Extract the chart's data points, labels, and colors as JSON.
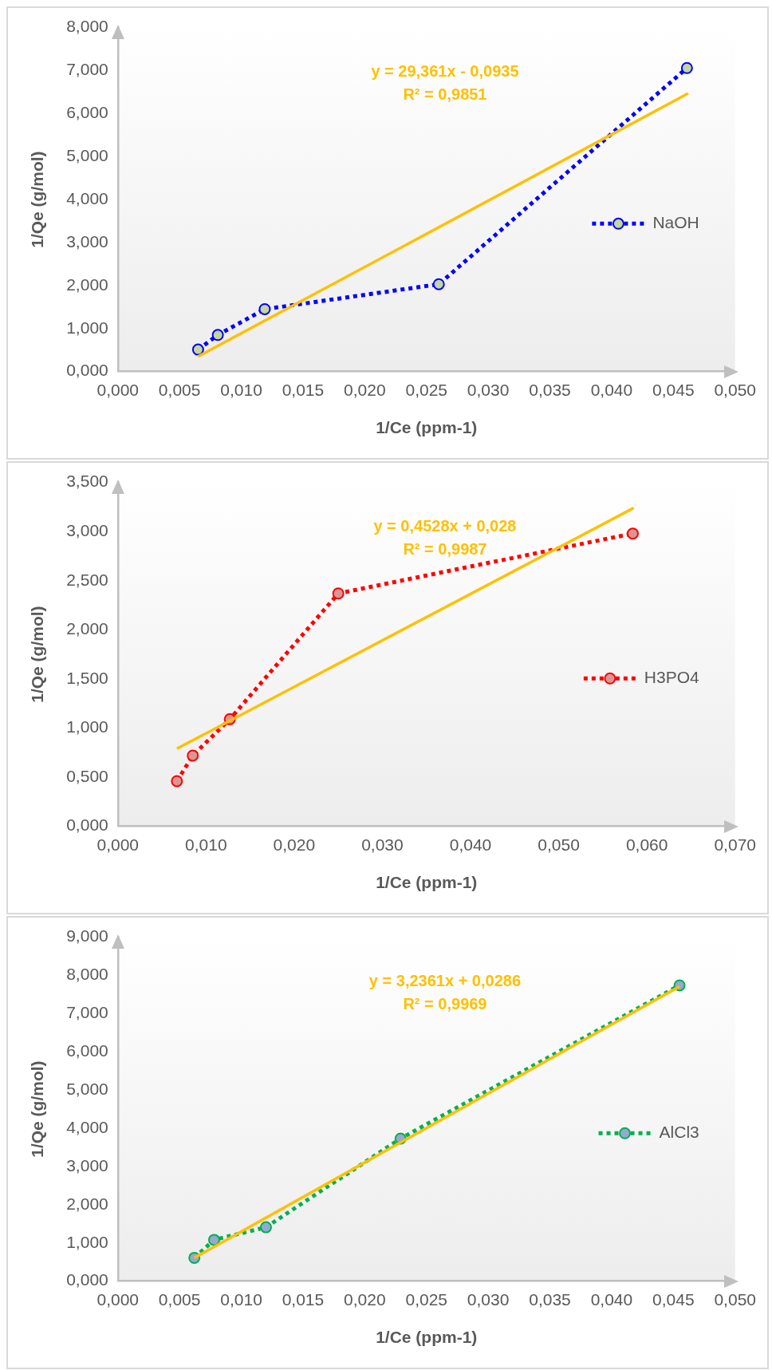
{
  "chart_data": [
    {
      "type": "line",
      "xlabel": "1/Ce (ppm-1)",
      "ylabel": "1/Qe (g/mol)",
      "xlim": [
        0,
        0.05
      ],
      "xticks": [
        {
          "value": 0,
          "label": "0,000"
        },
        {
          "value": 0.005,
          "label": "0,005"
        },
        {
          "value": 0.01,
          "label": "0,010"
        },
        {
          "value": 0.015,
          "label": "0,015"
        },
        {
          "value": 0.02,
          "label": "0,020"
        },
        {
          "value": 0.025,
          "label": "0,025"
        },
        {
          "value": 0.03,
          "label": "0,030"
        },
        {
          "value": 0.035,
          "label": "0,035"
        },
        {
          "value": 0.04,
          "label": "0,040"
        },
        {
          "value": 0.045,
          "label": "0,045"
        },
        {
          "value": 0.05,
          "label": "0,050"
        }
      ],
      "ylim": [
        0,
        8
      ],
      "yticks": [
        {
          "value": 0,
          "label": "0,000"
        },
        {
          "value": 1,
          "label": "1,000"
        },
        {
          "value": 2,
          "label": "2,000"
        },
        {
          "value": 3,
          "label": "3,000"
        },
        {
          "value": 4,
          "label": "4,000"
        },
        {
          "value": 5,
          "label": "5,000"
        },
        {
          "value": 6,
          "label": "6,000"
        },
        {
          "value": 7,
          "label": "7,000"
        },
        {
          "value": 8,
          "label": "8,000"
        }
      ],
      "legend": "right",
      "marker": "circle",
      "line_style": "dotted",
      "annotations": [
        "y = 29,361x - 0,0935",
        "R² = 0,9851"
      ],
      "series": [
        {
          "name": "NaOH",
          "color": "#0000ff",
          "colors": [
            "#c4d79b",
            "#c4d79b",
            "#c4d79b",
            "#c4d79b",
            "#c4d79b"
          ],
          "x": [
            0.0065,
            0.0081,
            0.0119,
            0.026,
            0.0461
          ],
          "values": [
            0.51,
            0.85,
            1.45,
            2.03,
            7.06
          ]
        },
        {
          "type": "line",
          "color": "#ffc000",
          "marker": "none",
          "line_style": "solid",
          "x": [
            0.0065,
            0.0462
          ],
          "values": [
            0.35,
            6.47
          ]
        }
      ]
    },
    {
      "type": "line",
      "xlabel": "1/Ce (ppm-1)",
      "ylabel": "1/Qe (g/mol)",
      "xlim": [
        0,
        0.07
      ],
      "xticks": [
        {
          "value": 0,
          "label": "0,000"
        },
        {
          "value": 0.01,
          "label": "0,010"
        },
        {
          "value": 0.02,
          "label": "0,020"
        },
        {
          "value": 0.03,
          "label": "0,030"
        },
        {
          "value": 0.04,
          "label": "0,040"
        },
        {
          "value": 0.05,
          "label": "0,050"
        },
        {
          "value": 0.06,
          "label": "0,060"
        },
        {
          "value": 0.07,
          "label": "0,070"
        }
      ],
      "ylim": [
        0,
        3.5
      ],
      "yticks": [
        {
          "value": 0,
          "label": "0,000"
        },
        {
          "value": 0.5,
          "label": "0,500"
        },
        {
          "value": 1,
          "label": "1,000"
        },
        {
          "value": 1.5,
          "label": "1,500"
        },
        {
          "value": 2,
          "label": "2,000"
        },
        {
          "value": 2.5,
          "label": "2,500"
        },
        {
          "value": 3,
          "label": "3,000"
        },
        {
          "value": 3.5,
          "label": "3,500"
        }
      ],
      "legend": "right",
      "marker": "circle",
      "line_style": "dotted",
      "annotations": [
        "y = 0,4528x + 0,028",
        "R² = 0,9987"
      ],
      "series": [
        {
          "name": "H3PO4",
          "color": "#ff0000",
          "colors": [
            "#da9694",
            "#da9694",
            "#da9694",
            "#da9694",
            "#da9694"
          ],
          "x": [
            0.0067,
            0.0085,
            0.0127,
            0.025,
            0.0584
          ],
          "values": [
            0.46,
            0.72,
            1.09,
            2.37,
            2.98
          ]
        },
        {
          "type": "line",
          "color": "#ffc000",
          "marker": "none",
          "line_style": "solid",
          "x": [
            0.0067,
            0.0585
          ],
          "values": [
            0.79,
            3.24
          ]
        }
      ]
    },
    {
      "type": "line",
      "xlabel": "1/Ce (ppm-1)",
      "ylabel": "1/Qe (g/mol)",
      "xlim": [
        0,
        0.05
      ],
      "xticks": [
        {
          "value": 0,
          "label": "0,000"
        },
        {
          "value": 0.005,
          "label": "0,005"
        },
        {
          "value": 0.01,
          "label": "0,010"
        },
        {
          "value": 0.015,
          "label": "0,015"
        },
        {
          "value": 0.02,
          "label": "0,020"
        },
        {
          "value": 0.025,
          "label": "0,025"
        },
        {
          "value": 0.03,
          "label": "0,030"
        },
        {
          "value": 0.035,
          "label": "0,035"
        },
        {
          "value": 0.04,
          "label": "0,040"
        },
        {
          "value": 0.045,
          "label": "0,045"
        },
        {
          "value": 0.05,
          "label": "0,050"
        }
      ],
      "ylim": [
        0,
        9
      ],
      "yticks": [
        {
          "value": 0,
          "label": "0,000"
        },
        {
          "value": 1,
          "label": "1,000"
        },
        {
          "value": 2,
          "label": "2,000"
        },
        {
          "value": 3,
          "label": "3,000"
        },
        {
          "value": 4,
          "label": "4,000"
        },
        {
          "value": 5,
          "label": "5,000"
        },
        {
          "value": 6,
          "label": "6,000"
        },
        {
          "value": 7,
          "label": "7,000"
        },
        {
          "value": 8,
          "label": "8,000"
        },
        {
          "value": 9,
          "label": "9,000"
        }
      ],
      "legend": "right",
      "marker": "circle",
      "line_style": "dotted",
      "annotations": [
        "y = 3,2361x + 0,0286",
        "R² = 0,9969"
      ],
      "series": [
        {
          "name": "AlCl3",
          "color": "#00b050",
          "colors": [
            "#95a9d1",
            "#95a9d1",
            "#95a9d1",
            "#95a9d1",
            "#95a9d1"
          ],
          "x": [
            0.0062,
            0.0078,
            0.012,
            0.0229,
            0.0455
          ],
          "values": [
            0.61,
            1.08,
            1.41,
            3.73,
            7.74
          ]
        },
        {
          "type": "line",
          "color": "#ffc000",
          "marker": "none",
          "line_style": "solid",
          "x": [
            0.0062,
            0.0455
          ],
          "values": [
            0.61,
            7.71
          ]
        }
      ]
    }
  ]
}
